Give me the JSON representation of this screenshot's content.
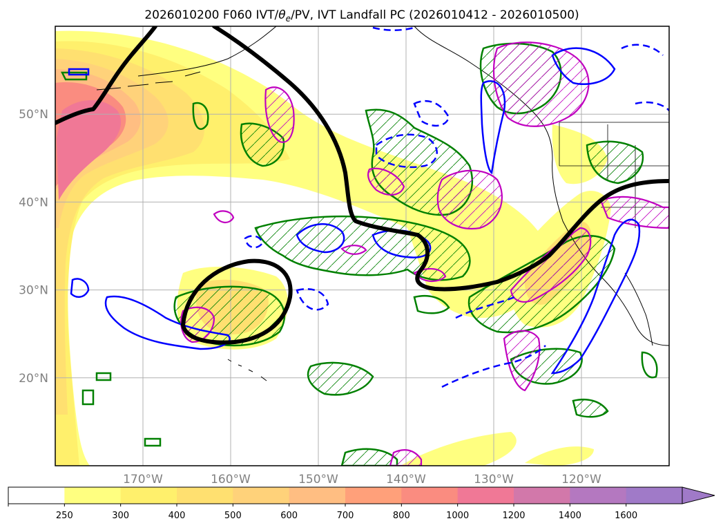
{
  "title": {
    "prefix": "2026010200 F060 IVT/",
    "theta": "θ",
    "theta_sub": "e",
    "suffix": "/PV, IVT Landfall PC (2026010412 - 2026010500)"
  },
  "map": {
    "lon_range": [
      -180,
      -110
    ],
    "lat_range": [
      10,
      60
    ],
    "grid": true,
    "lat_ticks": [
      {
        "value": 20,
        "label": "20°N"
      },
      {
        "value": 30,
        "label": "30°N"
      },
      {
        "value": 40,
        "label": "40°N"
      },
      {
        "value": 50,
        "label": "50°N"
      }
    ],
    "lon_ticks": [
      {
        "value": -170,
        "label": "170°W"
      },
      {
        "value": -160,
        "label": "160°W"
      },
      {
        "value": -150,
        "label": "150°W"
      },
      {
        "value": -140,
        "label": "140°W"
      },
      {
        "value": -130,
        "label": "130°W"
      },
      {
        "value": -120,
        "label": "120°W"
      }
    ]
  },
  "colors": {
    "pv_contour": "#000000",
    "green_contour": "#008000",
    "blue_contour": "#0000ff",
    "magenta_contour": "#c000c0",
    "coast": "#000000"
  },
  "colorbar": {
    "levels": [
      "250",
      "300",
      "400",
      "500",
      "600",
      "700",
      "800",
      "1000",
      "1200",
      "1400",
      "1600"
    ],
    "colors": [
      "#ffffff",
      "#ffff80",
      "#fff06c",
      "#ffe070",
      "#ffd27a",
      "#ffbe82",
      "#ffa07a",
      "#fa8c80",
      "#f07896",
      "#d278aa",
      "#b478c0",
      "#a07ac8"
    ],
    "extend": "max"
  }
}
